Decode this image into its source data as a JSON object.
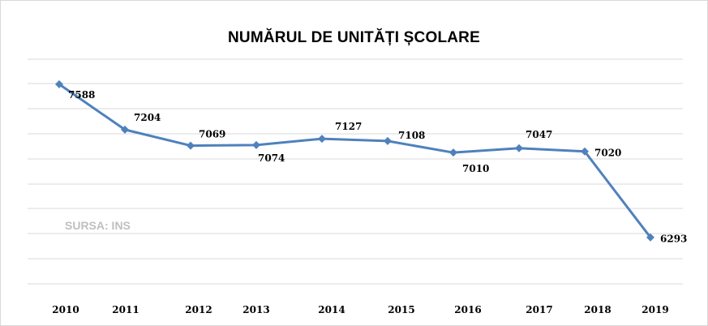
{
  "chart_data": {
    "type": "line",
    "title": "NUMĂRUL DE UNITĂȚI ȘCOLARE",
    "source_note": "SURSA: INS",
    "categories": [
      "2010",
      "2011",
      "2012",
      "2013",
      "2014",
      "2015",
      "2016",
      "2017",
      "2018",
      "2019"
    ],
    "series": [
      {
        "values": [
          7588,
          7204,
          7069,
          7074,
          7127,
          7108,
          7010,
          7047,
          7020,
          6293
        ]
      }
    ],
    "data_labels": [
      "7588",
      "7204",
      "7069",
      "7074",
      "7127",
      "7108",
      "7010",
      "7047",
      "7020",
      "6293"
    ],
    "ylim": [
      5900,
      7800
    ],
    "grid": true,
    "legend": "none",
    "line_color": "#4f81bd",
    "grid_color": "#d9d9d9"
  }
}
